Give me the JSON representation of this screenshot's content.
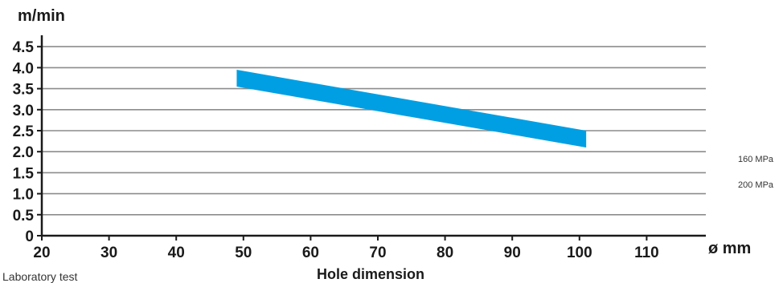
{
  "chart_data": {
    "type": "line",
    "ylabel": "m/min",
    "xlabel": "Hole dimension",
    "x_unit": "ø mm",
    "x_ticks": [
      "20",
      "30",
      "40",
      "50",
      "60",
      "70",
      "80",
      "90",
      "100",
      "110"
    ],
    "y_ticks": [
      "0",
      "0.5",
      "1.0",
      "1.5",
      "2.0",
      "2.5",
      "3.0",
      "3.5",
      "4.0",
      "4.5"
    ],
    "xlim": [
      20,
      117
    ],
    "ylim": [
      0,
      4.7
    ],
    "grid": true,
    "series": [
      {
        "x": [
          49,
          101
        ],
        "y_upper": [
          3.95,
          2.5
        ],
        "y_lower": [
          3.55,
          2.1
        ],
        "color": "#009fe3"
      }
    ],
    "annotations": {
      "note": "Laboratory test",
      "pressure_1": "160 MPa",
      "pressure_2": "200 MPa"
    }
  }
}
